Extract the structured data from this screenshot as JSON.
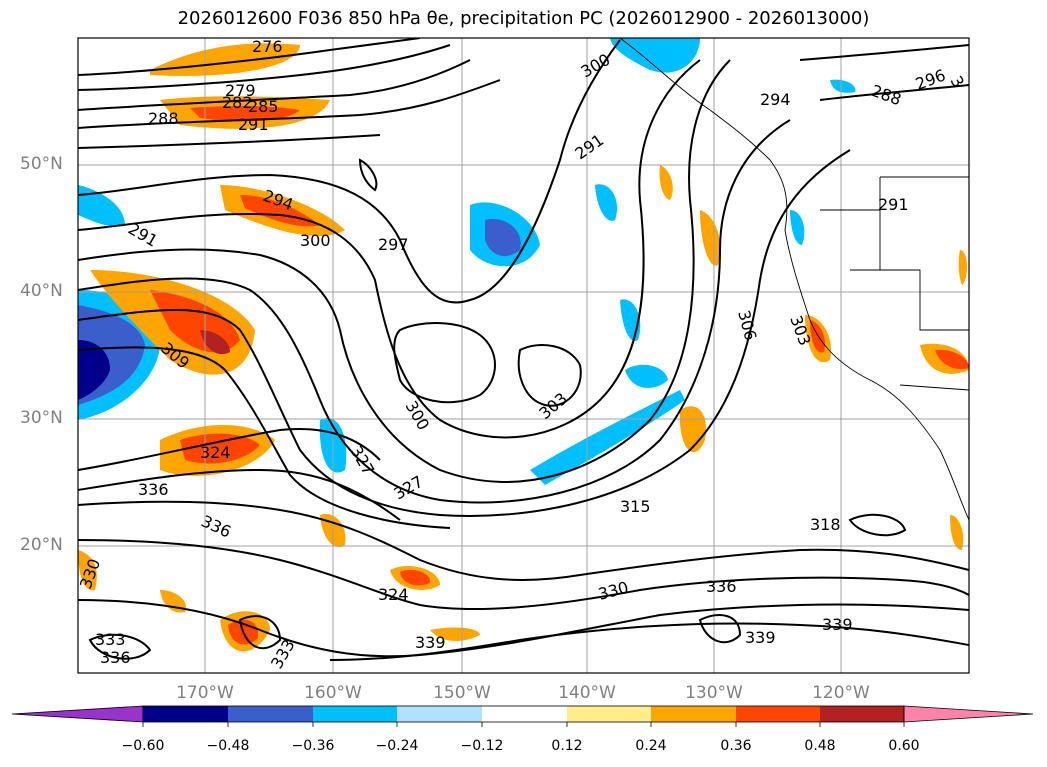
{
  "title": "2026012600 F036 850 hPa θe, precipitation PC (2026012900 - 2026013000)",
  "map": {
    "lat_labels": [
      "50°N",
      "40°N",
      "30°N",
      "20°N"
    ],
    "lon_labels": [
      "170°W",
      "160°W",
      "150°W",
      "140°W",
      "130°W",
      "120°W"
    ],
    "contour_labels": [
      "276",
      "279",
      "282",
      "285",
      "288",
      "291",
      "291",
      "291",
      "294",
      "297",
      "300",
      "300",
      "300",
      "303",
      "303",
      "306",
      "309",
      "315",
      "318",
      "324",
      "324",
      "327",
      "327",
      "330",
      "330",
      "333",
      "333",
      "336",
      "336",
      "336",
      "336",
      "339",
      "339",
      "339",
      "288",
      "291",
      "294",
      "296",
      "3"
    ]
  },
  "colorbar": {
    "ticks": [
      "−0.60",
      "−0.48",
      "−0.36",
      "−0.24",
      "−0.12",
      "0.12",
      "0.24",
      "0.36",
      "0.48",
      "0.60"
    ],
    "colors": [
      "#9a32cd",
      "#00008b",
      "#3a5fcd",
      "#00bfff",
      "#b0e2ff",
      "#ffffff",
      "#ffec8b",
      "#ffa500",
      "#ff4500",
      "#b22222",
      "#ff82ab"
    ]
  }
}
